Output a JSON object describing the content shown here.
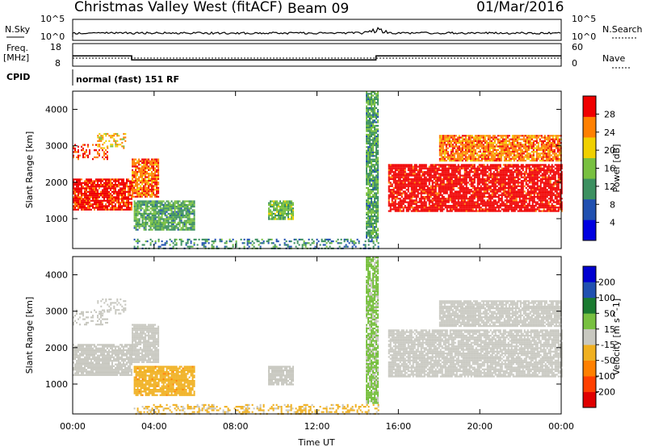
{
  "header": {
    "title": "Christmas Valley West (fitACF)",
    "beam": "Beam 09",
    "date": "01/Mar/2016"
  },
  "summary": {
    "nsky_label": "N.Sky",
    "nsearch_label": "N.Search",
    "nsky_ticks": [
      "10^5",
      "10^0"
    ],
    "nsearch_ticks": [
      "10^5",
      "10^0"
    ],
    "freq_label_1": "Freq.",
    "freq_label_2": "[MHz]",
    "freq_ticks": [
      "18",
      "8"
    ],
    "nave_label": "Nave",
    "nave_ticks": [
      "60",
      "0"
    ],
    "cpid_label": "CPID",
    "cpid_value": "normal (fast) 151 RF"
  },
  "chart_data": [
    {
      "type": "heatmap",
      "title": "",
      "xlabel": "Time UT",
      "ylabel": "Slant Range [km]",
      "x_ticks": [
        "00:00",
        "04:00",
        "08:00",
        "12:00",
        "16:00",
        "20:00",
        "00:00"
      ],
      "y_ticks": [
        1000,
        2000,
        3000,
        4000
      ],
      "x_range_hours": [
        0,
        24
      ],
      "y_range_km": [
        180,
        4500
      ],
      "colorbar": {
        "label": "Power [dB]",
        "ticks": [
          "28",
          "24",
          "20",
          "16",
          "12",
          "8",
          "4"
        ],
        "range": [
          0,
          30
        ],
        "colors": [
          "#0000e0",
          "#2050b0",
          "#3c9060",
          "#78c040",
          "#f0d000",
          "#ff8000",
          "#f00000"
        ]
      },
      "regions": [
        {
          "t": [
            0.0,
            2.9
          ],
          "r": [
            1250,
            2100
          ],
          "value": 28
        },
        {
          "t": [
            0.0,
            1.7
          ],
          "r": [
            2650,
            3050
          ],
          "value": 26
        },
        {
          "t": [
            1.2,
            2.6
          ],
          "r": [
            2950,
            3350
          ],
          "value": 20
        },
        {
          "t": [
            2.9,
            4.2
          ],
          "r": [
            1600,
            2650
          ],
          "value": 24
        },
        {
          "t": [
            3.0,
            6.0
          ],
          "r": [
            700,
            1500
          ],
          "value": 12
        },
        {
          "t": [
            9.6,
            10.8
          ],
          "r": [
            1000,
            1500
          ],
          "value": 14
        },
        {
          "t": [
            14.4,
            15.0
          ],
          "r": [
            500,
            4500
          ],
          "value": 12
        },
        {
          "t": [
            15.5,
            24.0
          ],
          "r": [
            1200,
            2500
          ],
          "value": 29
        },
        {
          "t": [
            18.0,
            24.0
          ],
          "r": [
            2600,
            3300
          ],
          "value": 24
        },
        {
          "t": [
            3.0,
            15.0
          ],
          "r": [
            180,
            450
          ],
          "value": 10
        }
      ]
    },
    {
      "type": "heatmap",
      "title": "",
      "xlabel": "Time UT",
      "ylabel": "Slant Range [km]",
      "x_ticks": [
        "00:00",
        "04:00",
        "08:00",
        "12:00",
        "16:00",
        "20:00",
        "00:00"
      ],
      "y_ticks": [
        1000,
        2000,
        3000,
        4000
      ],
      "x_range_hours": [
        0,
        24
      ],
      "y_range_km": [
        180,
        4500
      ],
      "colorbar": {
        "label": "Velocity [m s^-1]",
        "ticks": [
          "200",
          "100",
          "50",
          "15",
          "-15",
          "-50",
          "-100",
          "-200"
        ],
        "range": [
          -250,
          250
        ],
        "colors": [
          "#e00000",
          "#ff4000",
          "#ff8000",
          "#f0b020",
          "#c8c8c0",
          "#78c040",
          "#1a7a30",
          "#2050b0",
          "#0000d0"
        ]
      },
      "regions": [
        {
          "t": [
            0.0,
            2.9
          ],
          "r": [
            1250,
            2100
          ],
          "value": 0
        },
        {
          "t": [
            0.0,
            1.7
          ],
          "r": [
            2650,
            3050
          ],
          "value": 0
        },
        {
          "t": [
            1.2,
            2.6
          ],
          "r": [
            2950,
            3350
          ],
          "value": 0
        },
        {
          "t": [
            2.9,
            4.2
          ],
          "r": [
            1600,
            2650
          ],
          "value": 0
        },
        {
          "t": [
            3.0,
            6.0
          ],
          "r": [
            700,
            1500
          ],
          "value": -60
        },
        {
          "t": [
            9.6,
            10.8
          ],
          "r": [
            1000,
            1500
          ],
          "value": 0
        },
        {
          "t": [
            14.4,
            15.0
          ],
          "r": [
            500,
            4500
          ],
          "value": 40
        },
        {
          "t": [
            15.5,
            24.0
          ],
          "r": [
            1200,
            2500
          ],
          "value": 0
        },
        {
          "t": [
            18.0,
            24.0
          ],
          "r": [
            2600,
            3300
          ],
          "value": 0
        },
        {
          "t": [
            3.0,
            15.0
          ],
          "r": [
            180,
            450
          ],
          "value": -40
        }
      ]
    }
  ],
  "freq_series": {
    "hours": [
      0,
      2.9,
      2.9,
      14.9,
      14.9,
      24
    ],
    "mhz": [
      12.5,
      12.5,
      10.6,
      10.6,
      12.5,
      12.5
    ]
  }
}
